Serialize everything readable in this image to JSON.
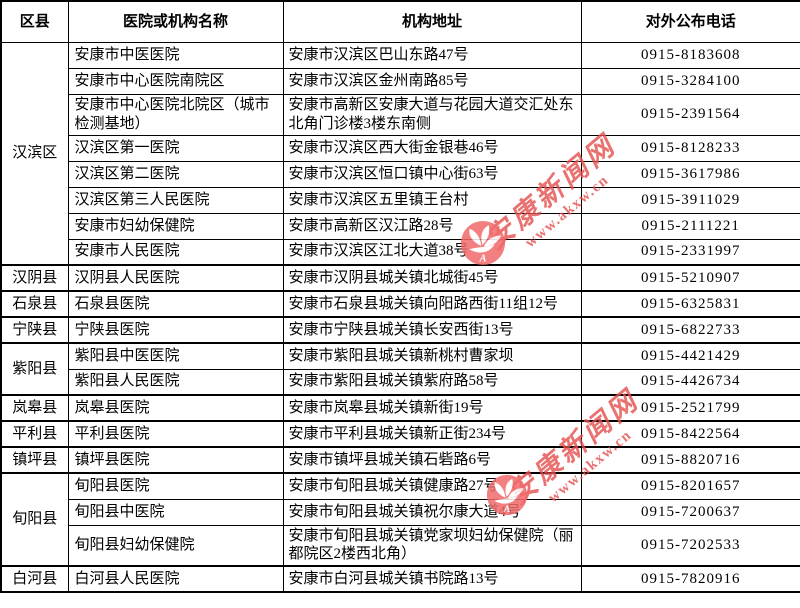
{
  "table": {
    "headers": [
      "区县",
      "医院或机构名称",
      "机构地址",
      "对外公布电话"
    ],
    "groups": [
      {
        "county": "汉滨区",
        "rows": [
          {
            "name": "安康市中医医院",
            "address": "安康市汉滨区巴山东路47号",
            "phone": "0915-8183608"
          },
          {
            "name": "安康市中心医院南院区",
            "address": "安康市汉滨区金州南路85号",
            "phone": "0915-3284100"
          },
          {
            "name": "安康市中心医院北院区（城市检测基地）",
            "address": "安康市高新区安康大道与花园大道交汇处东北角门诊楼3楼东南侧",
            "phone": "0915-2391564"
          },
          {
            "name": "汉滨区第一医院",
            "address": "安康市汉滨区西大街金银巷46号",
            "phone": "0915-8128233"
          },
          {
            "name": "汉滨区第二医院",
            "address": "安康市汉滨区恒口镇中心街63号",
            "phone": "0915-3617986"
          },
          {
            "name": "汉滨区第三人民医院",
            "address": "安康市汉滨区五里镇王台村",
            "phone": "0915-3911029"
          },
          {
            "name": "安康市妇幼保健院",
            "address": "安康市高新区汉江路28号",
            "phone": "0915-2111221"
          },
          {
            "name": "安康市人民医院",
            "address": "安康市汉滨区江北大道38号",
            "phone": "0915-2331997"
          }
        ]
      },
      {
        "county": "汉阴县",
        "rows": [
          {
            "name": "汉阴县人民医院",
            "address": "安康市汉阴县城关镇北城街45号",
            "phone": "0915-5210907"
          }
        ]
      },
      {
        "county": "石泉县",
        "rows": [
          {
            "name": "石泉县医院",
            "address": "安康市石泉县城关镇向阳路西街11组12号",
            "phone": "0915-6325831"
          }
        ]
      },
      {
        "county": "宁陕县",
        "rows": [
          {
            "name": "宁陕县医院",
            "address": "安康市宁陕县城关镇长安西街13号",
            "phone": "0915-6822733"
          }
        ]
      },
      {
        "county": "紫阳县",
        "rows": [
          {
            "name": "紫阳县中医医院",
            "address": "安康市紫阳县城关镇新桃村曹家坝",
            "phone": "0915-4421429"
          },
          {
            "name": "紫阳县人民医院",
            "address": "安康市紫阳县城关镇紫府路58号",
            "phone": "0915-4426734"
          }
        ]
      },
      {
        "county": "岚皋县",
        "rows": [
          {
            "name": "岚皋县医院",
            "address": "安康市岚皋县城关镇新街19号",
            "phone": "0915-2521799"
          }
        ]
      },
      {
        "county": "平利县",
        "rows": [
          {
            "name": "平利县医院",
            "address": "安康市平利县城关镇新正街234号",
            "phone": "0915-8422564"
          }
        ]
      },
      {
        "county": "镇坪县",
        "rows": [
          {
            "name": "镇坪县医院",
            "address": "安康市镇坪县城关镇石砦路6号",
            "phone": "0915-8820716"
          }
        ]
      },
      {
        "county": "旬阳县",
        "rows": [
          {
            "name": "旬阳县医院",
            "address": "安康市旬阳县城关镇健康路27号",
            "phone": "0915-8201657"
          },
          {
            "name": "旬阳县中医院",
            "address": "安康市旬阳县城关镇祝尔康大道4号",
            "phone": "0915-7200637"
          },
          {
            "name": "旬阳县妇幼保健院",
            "address": "安康市旬阳县城关镇党家坝妇幼保健院（丽都院区2楼西北角）",
            "phone": "0915-7202533"
          }
        ]
      },
      {
        "county": "白河县",
        "rows": [
          {
            "name": "白河县人民医院",
            "address": "安康市白河县城关镇书院路13号",
            "phone": "0915-7820916"
          }
        ]
      }
    ]
  },
  "watermark": {
    "site_name": "安康新闻网",
    "site_url": "www.akxw.cn",
    "text_color": "#e4504e",
    "logo_color": "#f26a6a"
  }
}
